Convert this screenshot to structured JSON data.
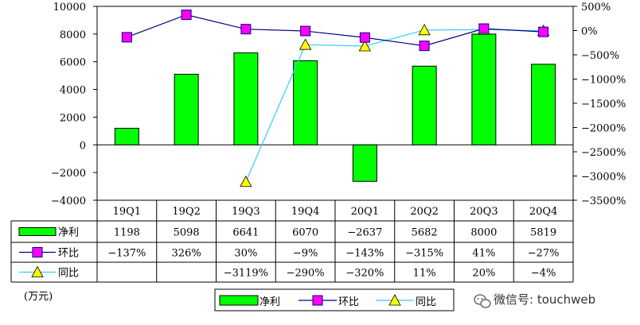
{
  "chart_data": {
    "type": "bar",
    "categories": [
      "19Q1",
      "19Q2",
      "19Q3",
      "19Q4",
      "20Q1",
      "20Q2",
      "20Q3",
      "20Q4"
    ],
    "series": [
      {
        "name": "净利",
        "kind": "bar",
        "axis": "left",
        "color": "#00ff00",
        "values": [
          1198,
          5098,
          6641,
          6070,
          -2637,
          5682,
          8000,
          5819
        ],
        "labels": [
          "1198",
          "5098",
          "6641",
          "6070",
          "−2637",
          "5682",
          "8000",
          "5819"
        ]
      },
      {
        "name": "环比",
        "kind": "line",
        "axis": "right",
        "color": "#000080",
        "marker": "square",
        "marker_color": "#ff00ff",
        "values": [
          -137,
          326,
          30,
          -9,
          -143,
          -315,
          41,
          -27
        ],
        "labels": [
          "−137%",
          "326%",
          "30%",
          "−9%",
          "−143%",
          "−315%",
          "41%",
          "−27%"
        ]
      },
      {
        "name": "同比",
        "kind": "line",
        "axis": "right",
        "color": "#33ccff",
        "marker": "triangle",
        "marker_color": "#ffff00",
        "values": [
          null,
          null,
          -3119,
          -290,
          -320,
          11,
          20,
          -4
        ],
        "labels": [
          "",
          "",
          "−3119%",
          "−290%",
          "−320%",
          "11%",
          "20%",
          "−4%"
        ]
      }
    ],
    "ylim_left": [
      -4000,
      10000
    ],
    "yticks_left": [
      10000,
      8000,
      6000,
      4000,
      2000,
      0,
      -2000,
      -4000
    ],
    "yticklabels_left": [
      "10000",
      "8000",
      "6000",
      "4000",
      "2000",
      "0",
      "−2000",
      "−4000"
    ],
    "ylim_right": [
      -3500,
      500
    ],
    "yticks_right": [
      500,
      0,
      -500,
      -1000,
      -1500,
      -2000,
      -2500,
      -3000,
      -3500
    ],
    "yticklabels_right": [
      "500%",
      "0%",
      "−500%",
      "−1000%",
      "−1500%",
      "−2000%",
      "−2500%",
      "−3000%",
      "−3500%"
    ],
    "unit_label": "(万元)",
    "legend_position": "bottom-center",
    "grid": false,
    "data_table": true
  },
  "watermark": {
    "icon": "wechat-icon",
    "text": "微信号: touchweb"
  }
}
